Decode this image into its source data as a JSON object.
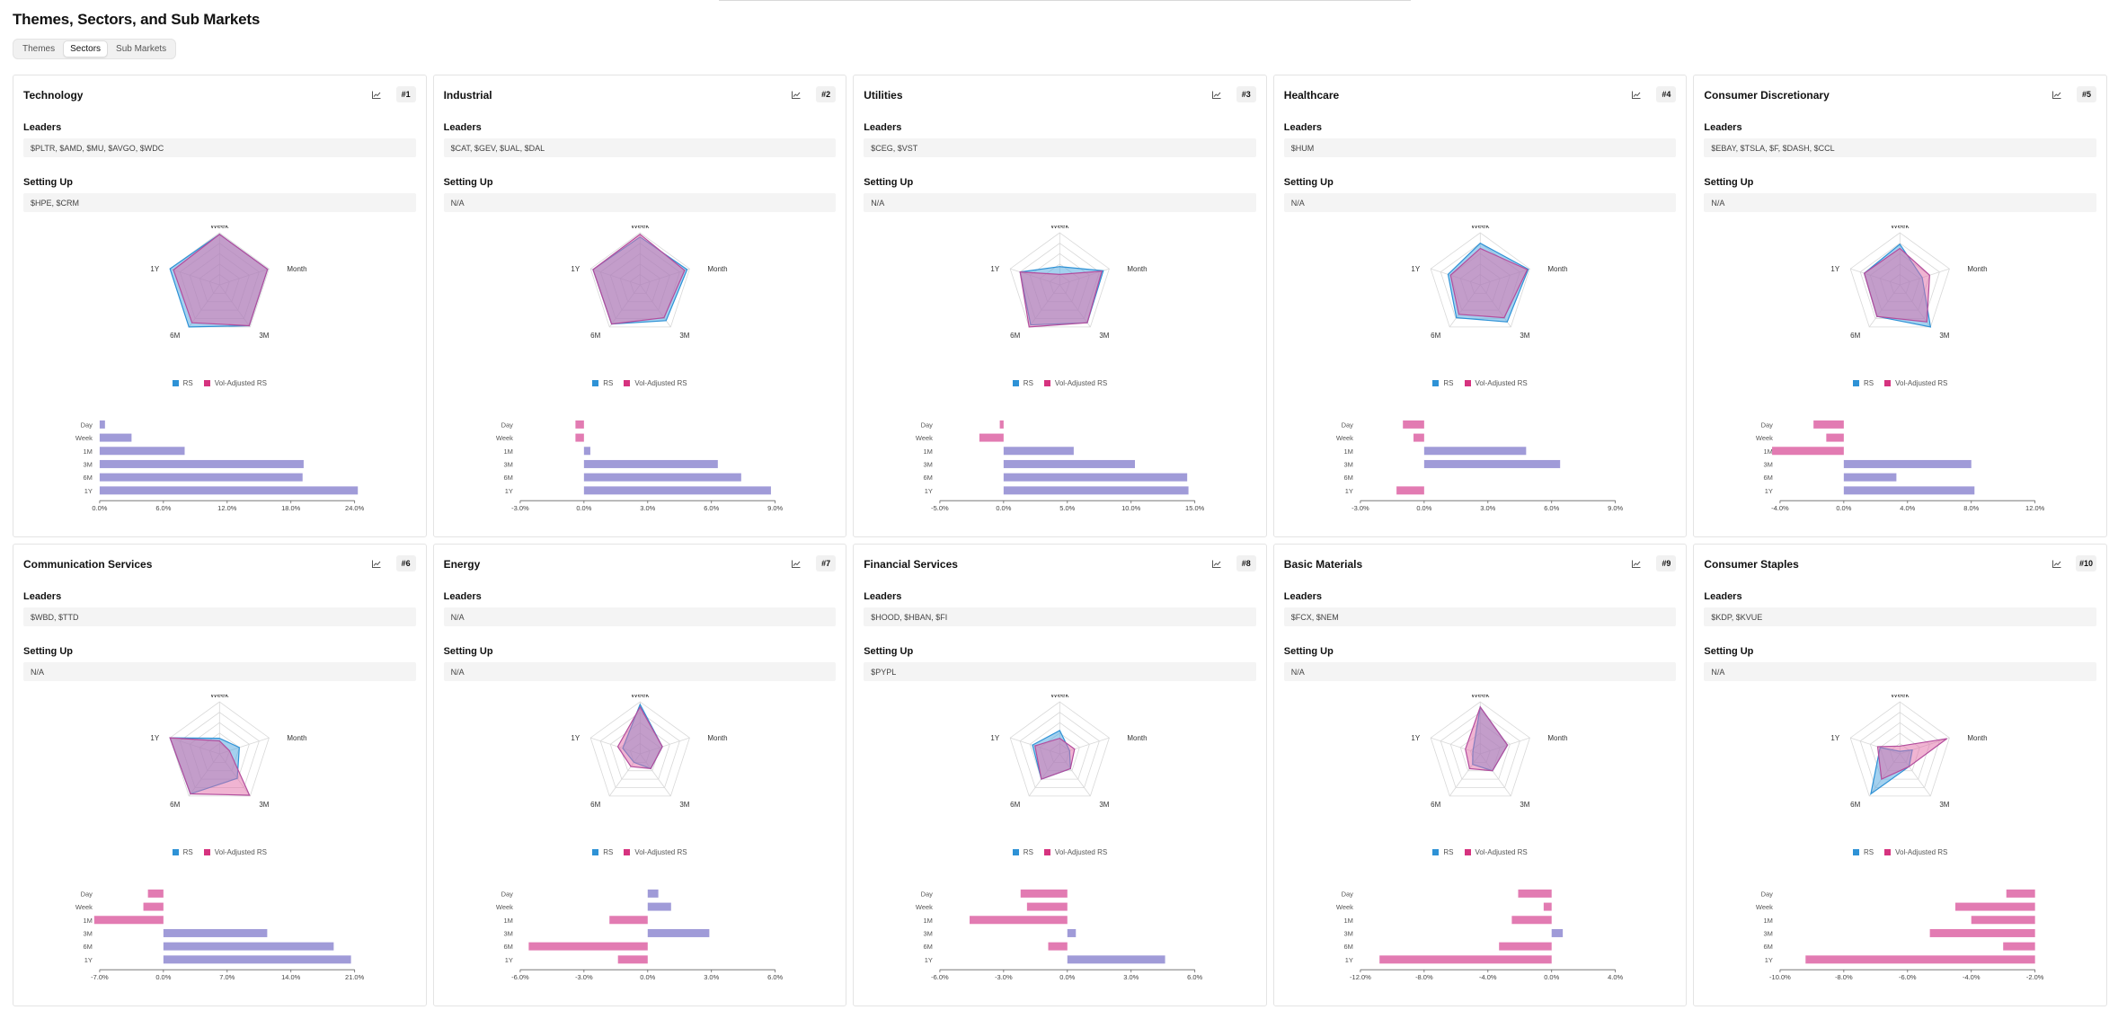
{
  "page_title": "Themes, Sectors, and Sub Markets",
  "tabs": [
    {
      "label": "Themes",
      "active": false
    },
    {
      "label": "Sectors",
      "active": true
    },
    {
      "label": "Sub Markets",
      "active": false
    }
  ],
  "labels": {
    "leaders": "Leaders",
    "setting_up": "Setting Up"
  },
  "legend": {
    "rs": "RS",
    "vol_rs": "Vol-Adjusted RS"
  },
  "colors": {
    "rs": "#2e92d6",
    "vol_rs": "#d6337f",
    "bar_pos": "#a09bd8",
    "bar_neg": "#e27bb2",
    "overlap": "#9b8bc9"
  },
  "radar_axes": [
    "Week",
    "Month",
    "3M",
    "6M",
    "1Y"
  ],
  "bar_categories": [
    "Day",
    "Week",
    "1M",
    "3M",
    "6M",
    "1Y"
  ],
  "sectors": [
    {
      "name": "Technology",
      "rank": "#1",
      "leaders": "$PLTR, $AMD, $MU, $AVGO, $WDC",
      "setting_up": "$HPE, $CRM",
      "radar": {
        "rs": [
          0.97,
          0.97,
          0.97,
          1.0,
          1.0
        ],
        "vol": [
          0.97,
          0.97,
          0.97,
          0.9,
          0.93
        ]
      },
      "chart_data": {
        "type": "bar",
        "categories": [
          "Day",
          "Week",
          "1M",
          "3M",
          "6M",
          "1Y"
        ],
        "values": [
          0.5,
          3.0,
          8.0,
          19.2,
          19.1,
          24.3
        ],
        "xlim": [
          0,
          24
        ],
        "ticks": [
          "0.0%",
          "6.0%",
          "12.0%",
          "18.0%",
          "24.0%"
        ]
      }
    },
    {
      "name": "Industrial",
      "rank": "#2",
      "leaders": "$CAT, $GEV, $UAL, $DAL",
      "setting_up": "N/A",
      "radar": {
        "rs": [
          0.92,
          0.95,
          0.85,
          0.93,
          0.95
        ],
        "vol": [
          0.97,
          0.9,
          0.78,
          0.93,
          0.95
        ]
      },
      "chart_data": {
        "type": "bar",
        "categories": [
          "Day",
          "Week",
          "1M",
          "3M",
          "6M",
          "1Y"
        ],
        "values": [
          -0.4,
          -0.4,
          0.3,
          6.3,
          7.4,
          8.8
        ],
        "xlim": [
          -3,
          9
        ],
        "ticks": [
          "-3.0%",
          "0.0%",
          "3.0%",
          "6.0%",
          "9.0%"
        ]
      }
    },
    {
      "name": "Utilities",
      "rank": "#3",
      "leaders": "$CEG, $VST",
      "setting_up": "N/A",
      "radar": {
        "rs": [
          0.35,
          0.88,
          0.9,
          0.95,
          0.8
        ],
        "vol": [
          0.2,
          0.85,
          0.9,
          1.0,
          0.8
        ]
      },
      "chart_data": {
        "type": "bar",
        "categories": [
          "Day",
          "Week",
          "1M",
          "3M",
          "6M",
          "1Y"
        ],
        "values": [
          -0.3,
          -1.9,
          5.5,
          10.3,
          14.4,
          14.5
        ],
        "xlim": [
          -5,
          15
        ],
        "ticks": [
          "-5.0%",
          "0.0%",
          "5.0%",
          "10.0%",
          "15.0%"
        ]
      }
    },
    {
      "name": "Healthcare",
      "rank": "#4",
      "leaders": "$HUM",
      "setting_up": "N/A",
      "radar": {
        "rs": [
          0.8,
          0.97,
          0.88,
          0.78,
          0.65
        ],
        "vol": [
          0.7,
          0.95,
          0.78,
          0.7,
          0.6
        ]
      },
      "chart_data": {
        "type": "bar",
        "categories": [
          "Day",
          "Week",
          "1M",
          "3M",
          "6M",
          "1Y"
        ],
        "values": [
          -1.0,
          -0.5,
          4.8,
          6.4,
          0.0,
          -1.3
        ],
        "xlim": [
          -3,
          9
        ],
        "ticks": [
          "-3.0%",
          "0.0%",
          "3.0%",
          "6.0%",
          "9.0%"
        ]
      }
    },
    {
      "name": "Consumer Discretionary",
      "rank": "#5",
      "leaders": "$EBAY, $TSLA, $F, $DASH, $CCL",
      "setting_up": "N/A",
      "radar": {
        "rs": [
          0.78,
          0.45,
          1.0,
          0.75,
          0.72
        ],
        "vol": [
          0.7,
          0.6,
          0.88,
          0.75,
          0.72
        ]
      },
      "chart_data": {
        "type": "bar",
        "categories": [
          "Day",
          "Week",
          "1M",
          "3M",
          "6M",
          "1Y"
        ],
        "values": [
          -1.9,
          -1.1,
          -4.5,
          8.0,
          3.3,
          8.2
        ],
        "xlim": [
          -4,
          12
        ],
        "ticks": [
          "-4.0%",
          "0.0%",
          "4.0%",
          "8.0%",
          "12.0%"
        ]
      }
    },
    {
      "name": "Communication Services",
      "rank": "#6",
      "leaders": "$WBD, $TTD",
      "setting_up": "N/A",
      "radar": {
        "rs": [
          0.3,
          0.4,
          0.58,
          0.95,
          1.0
        ],
        "vol": [
          0.25,
          0.2,
          0.98,
          0.95,
          1.0
        ]
      },
      "chart_data": {
        "type": "bar",
        "categories": [
          "Day",
          "Week",
          "1M",
          "3M",
          "6M",
          "1Y"
        ],
        "values": [
          -1.7,
          -2.2,
          -7.6,
          11.4,
          18.7,
          20.6
        ],
        "xlim": [
          -7,
          21
        ],
        "ticks": [
          "-7.0%",
          "0.0%",
          "7.0%",
          "14.0%",
          "21.0%"
        ]
      }
    },
    {
      "name": "Energy",
      "rank": "#7",
      "leaders": "N/A",
      "setting_up": "N/A",
      "radar": {
        "rs": [
          0.95,
          0.45,
          0.35,
          0.2,
          0.35
        ],
        "vol": [
          0.9,
          0.45,
          0.35,
          0.3,
          0.45
        ]
      },
      "chart_data": {
        "type": "bar",
        "categories": [
          "Day",
          "Week",
          "1M",
          "3M",
          "6M",
          "1Y"
        ],
        "values": [
          0.5,
          1.1,
          -1.8,
          2.9,
          -5.6,
          -1.4
        ],
        "xlim": [
          -6,
          6
        ],
        "ticks": [
          "-6.0%",
          "-3.0%",
          "0.0%",
          "3.0%",
          "6.0%"
        ]
      }
    },
    {
      "name": "Financial Services",
      "rank": "#8",
      "leaders": "$HOOD, $HBAN, $FI",
      "setting_up": "$PYPL",
      "radar": {
        "rs": [
          0.45,
          0.2,
          0.35,
          0.6,
          0.55
        ],
        "vol": [
          0.3,
          0.3,
          0.35,
          0.6,
          0.5
        ]
      },
      "chart_data": {
        "type": "bar",
        "categories": [
          "Day",
          "Week",
          "1M",
          "3M",
          "6M",
          "1Y"
        ],
        "values": [
          -2.2,
          -1.9,
          -4.6,
          0.4,
          -0.9,
          4.6
        ],
        "xlim": [
          -6,
          6
        ],
        "ticks": [
          "-6.0%",
          "-3.0%",
          "0.0%",
          "3.0%",
          "6.0%"
        ]
      }
    },
    {
      "name": "Basic Materials",
      "rank": "#9",
      "leaders": "$FCX, $NEM",
      "setting_up": "N/A",
      "radar": {
        "rs": [
          0.9,
          0.55,
          0.4,
          0.25,
          0.15
        ],
        "vol": [
          0.9,
          0.55,
          0.4,
          0.35,
          0.3
        ]
      },
      "chart_data": {
        "type": "bar",
        "categories": [
          "Day",
          "Week",
          "1M",
          "3M",
          "6M",
          "1Y"
        ],
        "values": [
          -2.1,
          -0.5,
          -2.5,
          0.7,
          -3.3,
          -10.8
        ],
        "xlim": [
          -12,
          4
        ],
        "ticks": [
          "-12.0%",
          "-8.0%",
          "-4.0%",
          "0.0%",
          "4.0%"
        ]
      }
    },
    {
      "name": "Consumer Staples",
      "rank": "#10",
      "leaders": "$KDP, $KVUE",
      "setting_up": "N/A",
      "radar": {
        "rs": [
          0.05,
          0.25,
          0.3,
          0.95,
          0.4
        ],
        "vol": [
          0.15,
          0.95,
          0.3,
          0.6,
          0.45
        ]
      },
      "chart_data": {
        "type": "bar",
        "categories": [
          "Day",
          "Week",
          "1M",
          "3M",
          "6M",
          "1Y"
        ],
        "values": [
          -2.9,
          -4.5,
          -4.0,
          -5.3,
          -3.0,
          -9.2
        ],
        "xlim": [
          -10,
          -2
        ],
        "ticks": [
          "-10.0%",
          "-8.0%",
          "-6.0%",
          "-4.0%",
          "-2.0%"
        ]
      }
    }
  ]
}
